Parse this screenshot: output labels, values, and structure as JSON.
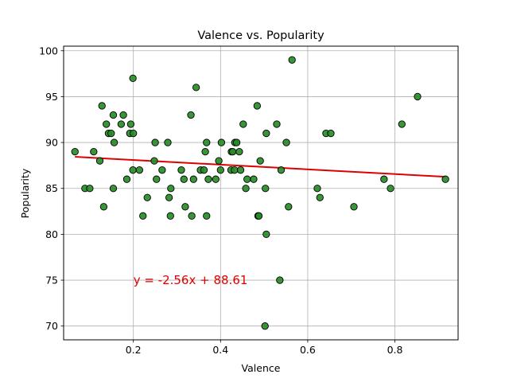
{
  "chart_data": {
    "type": "scatter",
    "title": "Valence vs. Popularity",
    "xlabel": "Valence",
    "ylabel": "Popularity",
    "xlim": [
      0.04,
      0.945
    ],
    "ylim": [
      68.5,
      100.5
    ],
    "xticks": [
      0.2,
      0.4,
      0.6,
      0.8
    ],
    "xtick_labels": [
      "0.2",
      "0.4",
      "0.6",
      "0.8"
    ],
    "yticks": [
      70,
      75,
      80,
      85,
      90,
      95,
      100
    ],
    "ytick_labels": [
      "70",
      "75",
      "80",
      "85",
      "90",
      "95",
      "100"
    ],
    "grid": true,
    "point_color": "#228b22",
    "point_edge_color": "#000000",
    "trend_color": "#e00000",
    "trendline": {
      "slope": -2.56,
      "intercept": 88.61,
      "x_range": [
        0.066,
        0.916
      ],
      "label": "y = -2.56x + 88.61",
      "label_x": 0.2,
      "label_y": 75
    },
    "points": [
      {
        "x": 0.066,
        "y": 89
      },
      {
        "x": 0.089,
        "y": 85
      },
      {
        "x": 0.1,
        "y": 85
      },
      {
        "x": 0.109,
        "y": 89
      },
      {
        "x": 0.123,
        "y": 88
      },
      {
        "x": 0.128,
        "y": 94
      },
      {
        "x": 0.132,
        "y": 83
      },
      {
        "x": 0.138,
        "y": 92
      },
      {
        "x": 0.143,
        "y": 91
      },
      {
        "x": 0.149,
        "y": 91
      },
      {
        "x": 0.154,
        "y": 85
      },
      {
        "x": 0.154,
        "y": 93
      },
      {
        "x": 0.156,
        "y": 90
      },
      {
        "x": 0.172,
        "y": 92
      },
      {
        "x": 0.177,
        "y": 93
      },
      {
        "x": 0.185,
        "y": 86
      },
      {
        "x": 0.192,
        "y": 91
      },
      {
        "x": 0.194,
        "y": 92
      },
      {
        "x": 0.199,
        "y": 97
      },
      {
        "x": 0.199,
        "y": 87
      },
      {
        "x": 0.2,
        "y": 91
      },
      {
        "x": 0.214,
        "y": 87
      },
      {
        "x": 0.222,
        "y": 82
      },
      {
        "x": 0.232,
        "y": 84
      },
      {
        "x": 0.248,
        "y": 88
      },
      {
        "x": 0.25,
        "y": 90
      },
      {
        "x": 0.253,
        "y": 86
      },
      {
        "x": 0.266,
        "y": 87
      },
      {
        "x": 0.279,
        "y": 90
      },
      {
        "x": 0.282,
        "y": 84
      },
      {
        "x": 0.285,
        "y": 82
      },
      {
        "x": 0.286,
        "y": 85
      },
      {
        "x": 0.31,
        "y": 87
      },
      {
        "x": 0.316,
        "y": 86
      },
      {
        "x": 0.319,
        "y": 83
      },
      {
        "x": 0.332,
        "y": 93
      },
      {
        "x": 0.334,
        "y": 82
      },
      {
        "x": 0.338,
        "y": 86
      },
      {
        "x": 0.344,
        "y": 96
      },
      {
        "x": 0.354,
        "y": 87
      },
      {
        "x": 0.362,
        "y": 87
      },
      {
        "x": 0.365,
        "y": 89
      },
      {
        "x": 0.368,
        "y": 82
      },
      {
        "x": 0.368,
        "y": 90
      },
      {
        "x": 0.372,
        "y": 86
      },
      {
        "x": 0.389,
        "y": 86
      },
      {
        "x": 0.396,
        "y": 88
      },
      {
        "x": 0.4,
        "y": 87
      },
      {
        "x": 0.402,
        "y": 90
      },
      {
        "x": 0.424,
        "y": 87
      },
      {
        "x": 0.425,
        "y": 89
      },
      {
        "x": 0.428,
        "y": 89
      },
      {
        "x": 0.432,
        "y": 87
      },
      {
        "x": 0.433,
        "y": 90
      },
      {
        "x": 0.437,
        "y": 90
      },
      {
        "x": 0.443,
        "y": 89
      },
      {
        "x": 0.446,
        "y": 87
      },
      {
        "x": 0.452,
        "y": 92
      },
      {
        "x": 0.458,
        "y": 85
      },
      {
        "x": 0.461,
        "y": 86
      },
      {
        "x": 0.476,
        "y": 86
      },
      {
        "x": 0.484,
        "y": 94
      },
      {
        "x": 0.486,
        "y": 82
      },
      {
        "x": 0.488,
        "y": 82
      },
      {
        "x": 0.491,
        "y": 88
      },
      {
        "x": 0.502,
        "y": 70
      },
      {
        "x": 0.503,
        "y": 85
      },
      {
        "x": 0.505,
        "y": 91
      },
      {
        "x": 0.505,
        "y": 80
      },
      {
        "x": 0.529,
        "y": 92
      },
      {
        "x": 0.536,
        "y": 75
      },
      {
        "x": 0.539,
        "y": 87
      },
      {
        "x": 0.551,
        "y": 90
      },
      {
        "x": 0.556,
        "y": 83
      },
      {
        "x": 0.564,
        "y": 99
      },
      {
        "x": 0.622,
        "y": 85
      },
      {
        "x": 0.628,
        "y": 84
      },
      {
        "x": 0.642,
        "y": 91
      },
      {
        "x": 0.653,
        "y": 91
      },
      {
        "x": 0.706,
        "y": 83
      },
      {
        "x": 0.775,
        "y": 86
      },
      {
        "x": 0.79,
        "y": 85
      },
      {
        "x": 0.816,
        "y": 92
      },
      {
        "x": 0.852,
        "y": 95
      },
      {
        "x": 0.916,
        "y": 86
      }
    ]
  }
}
